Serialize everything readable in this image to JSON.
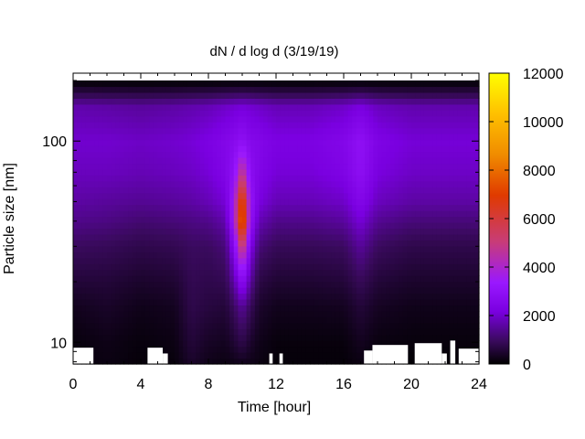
{
  "chart_data": {
    "type": "heatmap",
    "title": "dN / d log d (3/19/19)",
    "xlabel": "Time [hour]",
    "ylabel": "Particle size [nm]",
    "x_range": [
      0,
      24
    ],
    "x_ticks": [
      0,
      4,
      8,
      12,
      16,
      20,
      24
    ],
    "y_scale": "log",
    "y_range_nm": [
      7.8,
      200
    ],
    "y_ticks": [
      10,
      100
    ],
    "colorbar": {
      "range": [
        0,
        12000
      ],
      "ticks": [
        0,
        2000,
        4000,
        6000,
        8000,
        10000,
        12000
      ],
      "palette": [
        "#000000",
        "#3a0a5e",
        "#7a00e0",
        "#9a18ff",
        "#c83c78",
        "#e03a00",
        "#f08c00",
        "#ffc000",
        "#ffff00"
      ]
    },
    "time_hours": [
      0,
      2,
      4,
      6,
      7,
      8,
      9,
      9.5,
      10,
      10.5,
      11,
      12,
      14,
      16,
      17,
      18,
      20,
      22,
      24
    ],
    "size_nm": [
      8,
      10,
      15,
      20,
      30,
      40,
      50,
      70,
      100,
      150,
      200
    ],
    "dN_dlogd": [
      [
        150,
        200,
        450,
        900,
        1500,
        2000,
        2300,
        2600,
        2800,
        2400,
        0
      ],
      [
        300,
        350,
        650,
        900,
        1400,
        1900,
        2200,
        2600,
        2800,
        2300,
        0
      ],
      [
        150,
        200,
        400,
        700,
        1200,
        1700,
        2100,
        2500,
        2700,
        2200,
        0
      ],
      [
        200,
        300,
        500,
        800,
        1300,
        1800,
        2200,
        2600,
        2800,
        2300,
        0
      ],
      [
        700,
        900,
        1200,
        1300,
        1500,
        1900,
        2300,
        2700,
        2900,
        2400,
        0
      ],
      [
        400,
        600,
        1000,
        1200,
        1500,
        2000,
        2500,
        2900,
        3100,
        2500,
        0
      ],
      [
        300,
        500,
        900,
        1300,
        1800,
        2400,
        2900,
        3300,
        3400,
        2700,
        0
      ],
      [
        400,
        800,
        1500,
        2300,
        3500,
        4500,
        4500,
        4000,
        3600,
        2800,
        0
      ],
      [
        500,
        1200,
        2200,
        3800,
        6500,
        8800,
        8200,
        6000,
        4000,
        2900,
        0
      ],
      [
        400,
        700,
        1400,
        2200,
        3200,
        4000,
        4200,
        3800,
        3500,
        2800,
        0
      ],
      [
        300,
        400,
        700,
        1100,
        1800,
        2500,
        3000,
        3300,
        3400,
        2700,
        0
      ],
      [
        150,
        200,
        450,
        800,
        1400,
        2000,
        2500,
        2900,
        3100,
        2500,
        0
      ],
      [
        150,
        200,
        450,
        800,
        1400,
        2000,
        2500,
        2900,
        3100,
        2500,
        0
      ],
      [
        150,
        200,
        500,
        900,
        1500,
        2200,
        2700,
        3200,
        3400,
        2700,
        0
      ],
      [
        300,
        500,
        900,
        1400,
        2200,
        2900,
        3400,
        3900,
        4000,
        3000,
        0
      ],
      [
        150,
        250,
        550,
        900,
        1500,
        2100,
        2600,
        3000,
        3200,
        2600,
        0
      ],
      [
        100,
        200,
        400,
        700,
        1200,
        1800,
        2300,
        2700,
        2900,
        2400,
        0
      ],
      [
        100,
        200,
        400,
        700,
        1200,
        1800,
        2300,
        2700,
        2900,
        2400,
        0
      ],
      [
        100,
        200,
        400,
        700,
        1200,
        1800,
        2300,
        2700,
        2900,
        2400,
        0
      ]
    ],
    "missing_data": [
      {
        "t0": 0,
        "t1": 1.2,
        "d_max": 9.4
      },
      {
        "t0": 4.4,
        "t1": 5.3,
        "d_max": 9.4
      },
      {
        "t0": 5.3,
        "t1": 5.6,
        "d_max": 8.8
      },
      {
        "t0": 11.6,
        "t1": 11.8,
        "d_max": 8.8
      },
      {
        "t0": 12.2,
        "t1": 12.4,
        "d_max": 8.8
      },
      {
        "t0": 17.2,
        "t1": 17.7,
        "d_max": 9.1
      },
      {
        "t0": 17.7,
        "t1": 19.8,
        "d_max": 9.7
      },
      {
        "t0": 20.2,
        "t1": 21.8,
        "d_max": 9.9
      },
      {
        "t0": 21.8,
        "t1": 22.1,
        "d_max": 8.8
      },
      {
        "t0": 22.3,
        "t1": 22.6,
        "d_max": 10.2
      },
      {
        "t0": 22.8,
        "t1": 24,
        "d_max": 9.3
      }
    ]
  }
}
